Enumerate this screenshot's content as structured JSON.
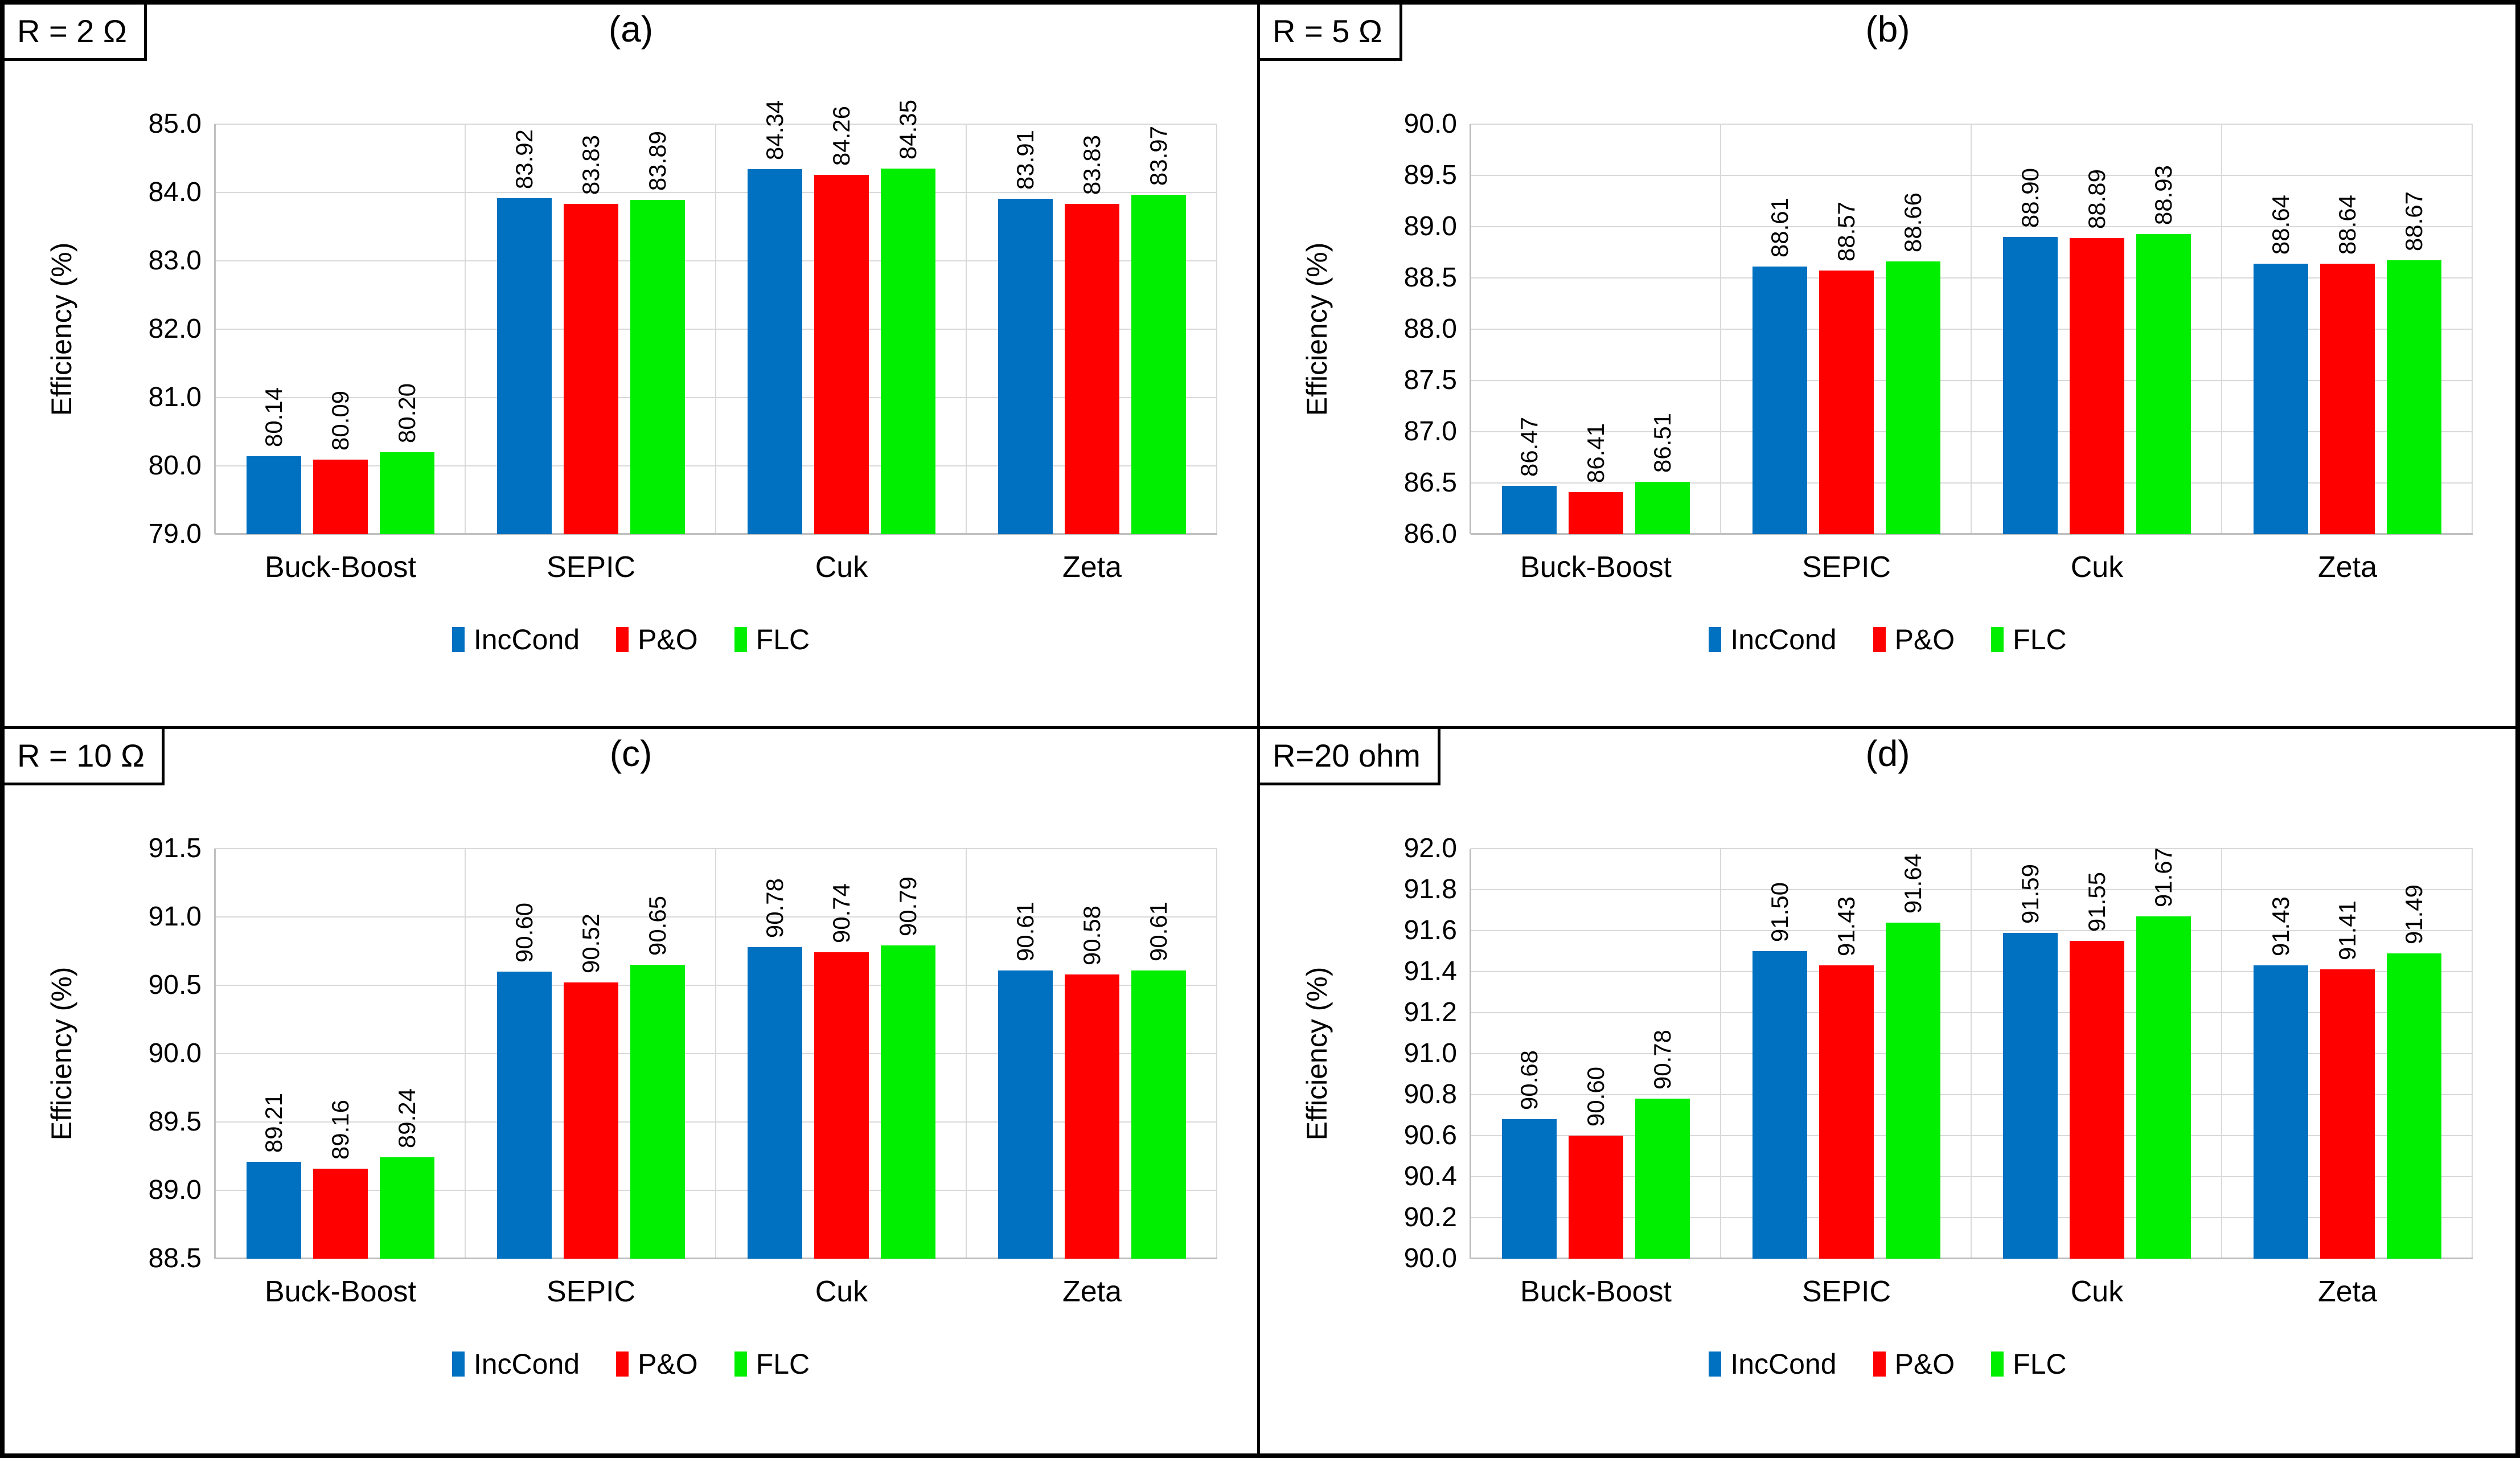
{
  "figure": {
    "background": "#FFFFFF",
    "border_color": "#000000",
    "gridline_color": "#D9D9D9",
    "axisline_color": "#BFBFBF"
  },
  "chart_data": [
    {
      "type": "bar",
      "panel": "a",
      "title": "(a)",
      "condition_label": "R = 2 Ω",
      "ylabel": "Efficiency (%)",
      "ylim": [
        79.0,
        85.0
      ],
      "ystep": 1.0,
      "ytick_labels": [
        "85.0",
        "84.0",
        "83.0",
        "82.0",
        "81.0",
        "80.0",
        "79.0"
      ],
      "categories": [
        "Buck-Boost",
        "SEPIC",
        "Cuk",
        "Zeta"
      ],
      "grid": "horizontal",
      "legend_position": "bottom",
      "series": [
        {
          "name": "IncCond",
          "color": "#0070C0",
          "values": [
            80.14,
            83.92,
            84.34,
            83.91
          ],
          "labels": [
            "80.14",
            "83.92",
            "84.34",
            "83.91"
          ]
        },
        {
          "name": "P&O",
          "color": "#FF0000",
          "values": [
            80.09,
            83.83,
            84.26,
            83.83
          ],
          "labels": [
            "80.09",
            "83.83",
            "84.26",
            "83.83"
          ]
        },
        {
          "name": "FLC",
          "color": "#00EE00",
          "values": [
            80.2,
            83.89,
            84.35,
            83.97
          ],
          "labels": [
            "80.20",
            "83.89",
            "84.35",
            "83.97"
          ]
        }
      ]
    },
    {
      "type": "bar",
      "panel": "b",
      "title": "(b)",
      "condition_label": "R = 5 Ω",
      "ylabel": "Efficiency (%)",
      "ylim": [
        86.0,
        90.0
      ],
      "ystep": 0.5,
      "ytick_labels": [
        "90.0",
        "89.5",
        "89.0",
        "88.5",
        "88.0",
        "87.5",
        "87.0",
        "86.5",
        "86.0"
      ],
      "categories": [
        "Buck-Boost",
        "SEPIC",
        "Cuk",
        "Zeta"
      ],
      "grid": "horizontal",
      "legend_position": "bottom",
      "series": [
        {
          "name": "IncCond",
          "color": "#0070C0",
          "values": [
            86.47,
            88.61,
            88.9,
            88.64
          ],
          "labels": [
            "86.47",
            "88.61",
            "88.90",
            "88.64"
          ]
        },
        {
          "name": "P&O",
          "color": "#FF0000",
          "values": [
            86.41,
            88.57,
            88.89,
            88.64
          ],
          "labels": [
            "86.41",
            "88.57",
            "88.89",
            "88.64"
          ]
        },
        {
          "name": "FLC",
          "color": "#00EE00",
          "values": [
            86.51,
            88.66,
            88.93,
            88.67
          ],
          "labels": [
            "86.51",
            "88.66",
            "88.93",
            "88.67"
          ]
        }
      ]
    },
    {
      "type": "bar",
      "panel": "c",
      "title": "(c)",
      "condition_label": "R = 10 Ω",
      "ylabel": "Efficiency (%)",
      "ylim": [
        88.5,
        91.5
      ],
      "ystep": 0.5,
      "ytick_labels": [
        "91.5",
        "91.0",
        "90.5",
        "90.0",
        "89.5",
        "89.0",
        "88.5"
      ],
      "categories": [
        "Buck-Boost",
        "SEPIC",
        "Cuk",
        "Zeta"
      ],
      "grid": "horizontal",
      "legend_position": "bottom",
      "series": [
        {
          "name": "IncCond",
          "color": "#0070C0",
          "values": [
            89.21,
            90.6,
            90.78,
            90.61
          ],
          "labels": [
            "89.21",
            "90.60",
            "90.78",
            "90.61"
          ]
        },
        {
          "name": "P&O",
          "color": "#FF0000",
          "values": [
            89.16,
            90.52,
            90.74,
            90.58
          ],
          "labels": [
            "89.16",
            "90.52",
            "90.74",
            "90.58"
          ]
        },
        {
          "name": "FLC",
          "color": "#00EE00",
          "values": [
            89.24,
            90.65,
            90.79,
            90.61
          ],
          "labels": [
            "89.24",
            "90.65",
            "90.79",
            "90.61"
          ]
        }
      ]
    },
    {
      "type": "bar",
      "panel": "d",
      "title": "(d)",
      "condition_label": "R=20 ohm",
      "ylabel": "Efficiency (%)",
      "ylim": [
        90.0,
        92.0
      ],
      "ystep": 0.2,
      "ytick_labels": [
        "92.0",
        "91.8",
        "91.6",
        "91.4",
        "91.2",
        "91.0",
        "90.8",
        "90.6",
        "90.4",
        "90.2",
        "90.0"
      ],
      "categories": [
        "Buck-Boost",
        "SEPIC",
        "Cuk",
        "Zeta"
      ],
      "grid": "horizontal",
      "legend_position": "bottom",
      "series": [
        {
          "name": "IncCond",
          "color": "#0070C0",
          "values": [
            90.68,
            91.5,
            91.59,
            91.43
          ],
          "labels": [
            "90.68",
            "91.50",
            "91.59",
            "91.43"
          ]
        },
        {
          "name": "P&O",
          "color": "#FF0000",
          "values": [
            90.6,
            91.43,
            91.55,
            91.41
          ],
          "labels": [
            "90.60",
            "91.43",
            "91.55",
            "91.41"
          ]
        },
        {
          "name": "FLC",
          "color": "#00EE00",
          "values": [
            90.78,
            91.64,
            91.67,
            91.49
          ],
          "labels": [
            "90.78",
            "91.64",
            "91.67",
            "91.49"
          ]
        }
      ]
    }
  ]
}
